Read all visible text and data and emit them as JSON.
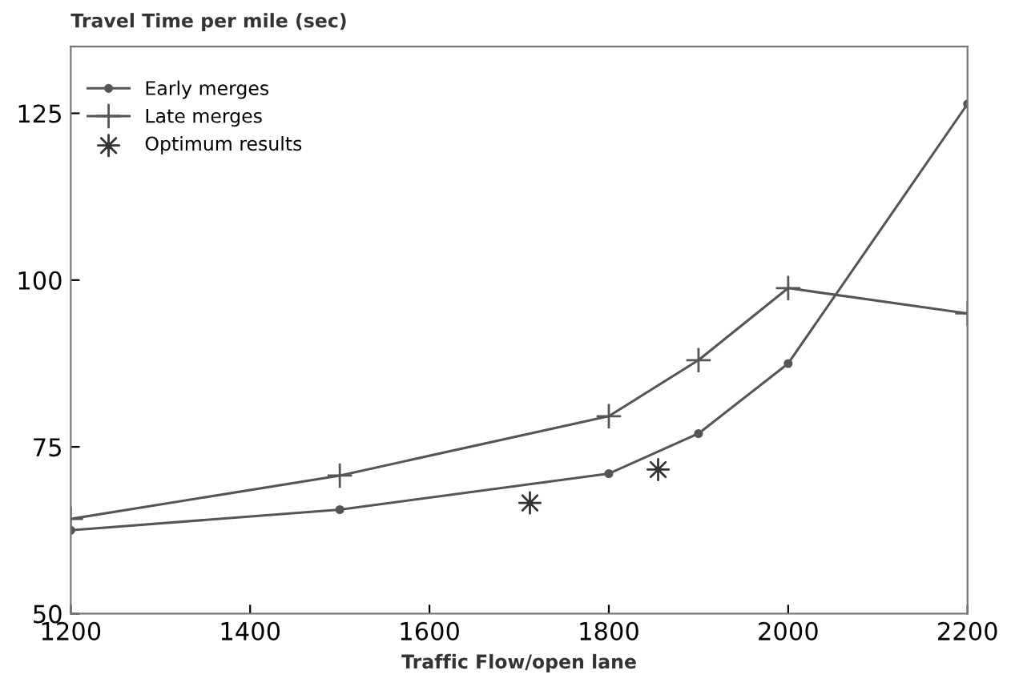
{
  "chart_data": {
    "type": "line",
    "ylabel": "Travel Time per mile (sec)",
    "xlabel": "Traffic Flow/open lane",
    "xlim": [
      1200,
      2200
    ],
    "xticks": [
      1200,
      1400,
      1600,
      1800,
      2000,
      2200
    ],
    "ylim": [
      50,
      135
    ],
    "yticks": [
      50,
      75,
      100,
      125
    ],
    "grid": false,
    "legend": "top left",
    "series": [
      {
        "name": "Early merges",
        "marker": "circle",
        "color": "#555555",
        "x": [
          1200,
          1500,
          1800,
          1900,
          2000,
          2200
        ],
        "values": [
          62.5,
          65.6,
          71,
          77,
          87.5,
          126.4
        ]
      },
      {
        "name": "Late merges",
        "marker": "cross",
        "color": "#555555",
        "x": [
          1200,
          1500,
          1800,
          1900,
          2000,
          2200
        ],
        "values": [
          64.2,
          70.7,
          79.6,
          88,
          98.8,
          95
        ]
      },
      {
        "name": "Optimum results",
        "type": "scatter",
        "marker": "star",
        "color": "#333333",
        "x": [
          1712,
          1855
        ],
        "values": [
          66.6,
          71.6
        ]
      }
    ]
  }
}
